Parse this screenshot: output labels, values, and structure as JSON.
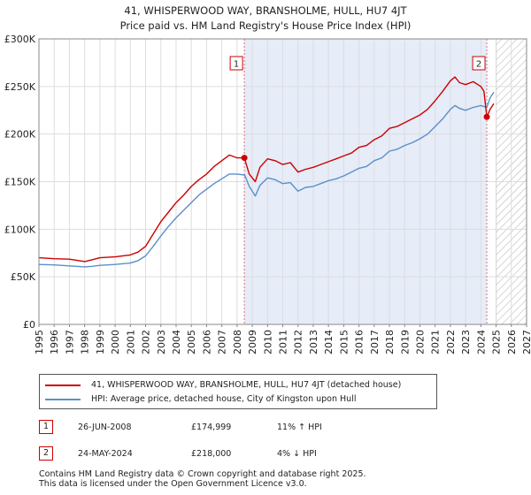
{
  "title": "41, WHISPERWOOD WAY, BRANSHOLME, HULL, HU7 4JT",
  "subtitle": "Price paid vs. HM Land Registry's House Price Index (HPI)",
  "chart_data": {
    "type": "line",
    "xlim": [
      1995,
      2027
    ],
    "ylim": [
      0,
      300000
    ],
    "y_ticks": [
      0,
      50000,
      100000,
      150000,
      200000,
      250000,
      300000
    ],
    "y_tick_labels": [
      "£0",
      "£50K",
      "£100K",
      "£150K",
      "£200K",
      "£250K",
      "£300K"
    ],
    "x_ticks": [
      1995,
      1996,
      1997,
      1998,
      1999,
      2000,
      2001,
      2002,
      2003,
      2004,
      2005,
      2006,
      2007,
      2008,
      2009,
      2010,
      2011,
      2012,
      2013,
      2014,
      2015,
      2016,
      2017,
      2018,
      2019,
      2020,
      2021,
      2022,
      2023,
      2024,
      2025,
      2026,
      2027
    ],
    "x_tick_labels": [
      "1995",
      "1996",
      "1997",
      "1998",
      "1999",
      "2000",
      "2001",
      "2002",
      "2003",
      "2004",
      "2005",
      "2006",
      "2007",
      "2008",
      "2009",
      "2010",
      "2011",
      "2012",
      "2013",
      "2014",
      "2015",
      "2016",
      "2017",
      "2018",
      "2019",
      "2020",
      "2021",
      "2022",
      "2023",
      "2024",
      "2025",
      "2026",
      "2027"
    ],
    "shaded_period": [
      2008.48,
      2024.39
    ],
    "hatched_from": 2025.0,
    "colors": {
      "property": "#cc0000",
      "hpi": "#5b8fc9",
      "shade": "#e6ecf8",
      "grid": "#dddddd"
    },
    "series": [
      {
        "name": "41, WHISPERWOOD WAY, BRANSHOLME, HULL, HU7 4JT (detached house)",
        "color": "#cc0000",
        "x": [
          1995,
          1996,
          1997,
          1998,
          1998.5,
          1999,
          2000,
          2001,
          2001.5,
          2002,
          2002.5,
          2003,
          2003.5,
          2004,
          2004.5,
          2005,
          2005.5,
          2006,
          2006.5,
          2007,
          2007.5,
          2008,
          2008.48,
          2008.8,
          2009.2,
          2009.5,
          2010,
          2010.5,
          2011,
          2011.5,
          2012,
          2012.5,
          2013,
          2013.5,
          2014,
          2014.5,
          2015,
          2015.5,
          2016,
          2016.5,
          2017,
          2017.5,
          2018,
          2018.5,
          2019,
          2019.5,
          2020,
          2020.5,
          2021,
          2021.5,
          2022,
          2022.3,
          2022.6,
          2023,
          2023.5,
          2024,
          2024.2,
          2024.39,
          2024.6,
          2024.85
        ],
        "values": [
          70000,
          69000,
          68500,
          66000,
          68000,
          70000,
          71000,
          73000,
          76000,
          82000,
          95000,
          108000,
          118000,
          128000,
          136000,
          145000,
          152000,
          158000,
          166000,
          172000,
          178000,
          175000,
          174999,
          158000,
          150000,
          165000,
          174000,
          172000,
          168000,
          170000,
          160000,
          163000,
          165000,
          168000,
          171000,
          174000,
          177000,
          180000,
          186000,
          188000,
          194000,
          198000,
          206000,
          208000,
          212000,
          216000,
          220000,
          226000,
          235000,
          245000,
          256000,
          260000,
          254000,
          252000,
          255000,
          250000,
          245000,
          218000,
          226000,
          232000
        ]
      },
      {
        "name": "HPI: Average price, detached house, City of Kingston upon Hull",
        "color": "#5b8fc9",
        "x": [
          1995,
          1996,
          1997,
          1998,
          1998.5,
          1999,
          2000,
          2001,
          2001.5,
          2002,
          2002.5,
          2003,
          2003.5,
          2004,
          2004.5,
          2005,
          2005.5,
          2006,
          2006.5,
          2007,
          2007.5,
          2008,
          2008.5,
          2008.8,
          2009.2,
          2009.5,
          2010,
          2010.5,
          2011,
          2011.5,
          2012,
          2012.5,
          2013,
          2013.5,
          2014,
          2014.5,
          2015,
          2015.5,
          2016,
          2016.5,
          2017,
          2017.5,
          2018,
          2018.5,
          2019,
          2019.5,
          2020,
          2020.5,
          2021,
          2021.5,
          2022,
          2022.3,
          2022.6,
          2023,
          2023.5,
          2024,
          2024.39,
          2024.6,
          2024.85
        ],
        "values": [
          63000,
          62500,
          61500,
          60500,
          61000,
          62000,
          63000,
          64500,
          67000,
          72000,
          82000,
          93000,
          103000,
          112000,
          120000,
          128000,
          136000,
          142000,
          148000,
          153000,
          158000,
          158000,
          157000,
          145000,
          135000,
          146000,
          154000,
          152000,
          148000,
          149000,
          140000,
          144000,
          145000,
          148000,
          151000,
          153000,
          156000,
          160000,
          164000,
          166000,
          172000,
          175000,
          182000,
          184000,
          188000,
          191000,
          195000,
          200000,
          208000,
          216000,
          226000,
          230000,
          227000,
          225000,
          228000,
          230000,
          228000,
          238000,
          244000
        ]
      }
    ],
    "annotations": [
      {
        "label": "1",
        "x": 2008.48,
        "y": 174999
      },
      {
        "label": "2",
        "x": 2024.39,
        "y": 218000
      }
    ]
  },
  "legend": {
    "property_label": "41, WHISPERWOOD WAY, BRANSHOLME, HULL, HU7 4JT (detached house)",
    "hpi_label": "HPI: Average price, detached house, City of Kingston upon Hull"
  },
  "transactions": [
    {
      "num": "1",
      "date": "26-JUN-2008",
      "price": "£174,999",
      "hpi": "11% ↑ HPI"
    },
    {
      "num": "2",
      "date": "24-MAY-2024",
      "price": "£218,000",
      "hpi": "4% ↓ HPI"
    }
  ],
  "footer": {
    "line1": "Contains HM Land Registry data © Crown copyright and database right 2025.",
    "line2": "This data is licensed under the Open Government Licence v3.0."
  }
}
